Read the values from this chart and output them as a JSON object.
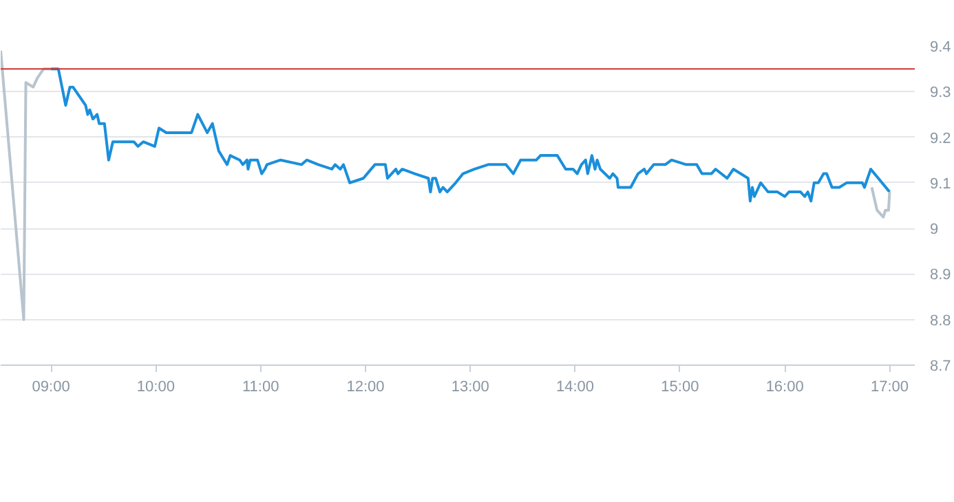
{
  "chart_data": {
    "type": "line",
    "xlim": [
      8.52,
      17.24
    ],
    "ylim": [
      8.7,
      9.4
    ],
    "xticks": [
      {
        "value": 9,
        "label": "09:00"
      },
      {
        "value": 10,
        "label": "10:00"
      },
      {
        "value": 11,
        "label": "11:00"
      },
      {
        "value": 12,
        "label": "12:00"
      },
      {
        "value": 13,
        "label": "13:00"
      },
      {
        "value": 14,
        "label": "14:00"
      },
      {
        "value": 15,
        "label": "15:00"
      },
      {
        "value": 16,
        "label": "16:00"
      },
      {
        "value": 17,
        "label": "17:00"
      }
    ],
    "yticks": [
      8.7,
      8.8,
      8.9,
      9,
      9.1,
      9.2,
      9.3,
      9.4
    ],
    "grid": "y",
    "marker": "none",
    "line_style": "solid",
    "series": [
      {
        "color": "#b8c4ce",
        "x": [
          8.52,
          8.74,
          8.76,
          8.83,
          8.87,
          8.93,
          9.0
        ],
        "values": [
          9.39,
          8.8,
          9.32,
          9.31,
          9.33,
          9.35,
          9.35
        ]
      },
      {
        "color": "#1a8fdb",
        "x": [
          9.0,
          9.07,
          9.14,
          9.18,
          9.21,
          9.33,
          9.35,
          9.37,
          9.4,
          9.44,
          9.46,
          9.51,
          9.55,
          9.59,
          9.65,
          9.74,
          9.79,
          9.83,
          9.88,
          9.99,
          10.03,
          10.1,
          10.34,
          10.4,
          10.49,
          10.54,
          10.6,
          10.68,
          10.71,
          10.8,
          10.83,
          10.87,
          10.88,
          10.9,
          10.97,
          11.01,
          11.04,
          11.06,
          11.19,
          11.39,
          11.44,
          11.55,
          11.68,
          11.71,
          11.76,
          11.79,
          11.85,
          11.98,
          12.09,
          12.19,
          12.21,
          12.29,
          12.31,
          12.35,
          12.47,
          12.6,
          12.62,
          12.64,
          12.67,
          12.71,
          12.74,
          12.78,
          12.86,
          12.93,
          13.04,
          13.17,
          13.34,
          13.41,
          13.48,
          13.63,
          13.67,
          13.83,
          13.91,
          13.98,
          14.02,
          14.06,
          14.1,
          14.12,
          14.16,
          14.19,
          14.21,
          14.24,
          14.33,
          14.36,
          14.4,
          14.41,
          14.53,
          14.6,
          14.66,
          14.68,
          14.75,
          14.86,
          14.92,
          15.06,
          15.12,
          15.16,
          15.21,
          15.3,
          15.34,
          15.45,
          15.51,
          15.65,
          15.67,
          15.69,
          15.71,
          15.77,
          15.84,
          15.93,
          16.0,
          16.04,
          16.15,
          16.19,
          16.22,
          16.25,
          16.28,
          16.32,
          16.37,
          16.4,
          16.45,
          16.52,
          16.59,
          16.63,
          16.74,
          16.76,
          16.82,
          17.0
        ],
        "values": [
          9.35,
          9.35,
          9.27,
          9.31,
          9.31,
          9.27,
          9.25,
          9.26,
          9.24,
          9.25,
          9.23,
          9.23,
          9.15,
          9.19,
          9.19,
          9.19,
          9.19,
          9.18,
          9.19,
          9.18,
          9.22,
          9.21,
          9.21,
          9.25,
          9.21,
          9.23,
          9.17,
          9.14,
          9.16,
          9.15,
          9.14,
          9.15,
          9.13,
          9.15,
          9.15,
          9.12,
          9.13,
          9.14,
          9.15,
          9.14,
          9.15,
          9.14,
          9.13,
          9.14,
          9.13,
          9.14,
          9.1,
          9.11,
          9.14,
          9.14,
          9.11,
          9.13,
          9.12,
          9.13,
          9.12,
          9.11,
          9.08,
          9.11,
          9.11,
          9.08,
          9.09,
          9.08,
          9.1,
          9.12,
          9.13,
          9.14,
          9.14,
          9.12,
          9.15,
          9.15,
          9.16,
          9.16,
          9.13,
          9.13,
          9.12,
          9.14,
          9.15,
          9.12,
          9.16,
          9.13,
          9.15,
          9.13,
          9.11,
          9.12,
          9.11,
          9.09,
          9.09,
          9.12,
          9.13,
          9.12,
          9.14,
          9.14,
          9.15,
          9.14,
          9.14,
          9.14,
          9.12,
          9.12,
          9.13,
          9.11,
          9.13,
          9.11,
          9.06,
          9.09,
          9.07,
          9.1,
          9.08,
          9.08,
          9.07,
          9.08,
          9.08,
          9.07,
          9.08,
          9.06,
          9.1,
          9.1,
          9.12,
          9.12,
          9.09,
          9.09,
          9.1,
          9.1,
          9.1,
          9.09,
          9.13,
          9.08
        ]
      },
      {
        "color": "#b8c4ce",
        "x": [
          16.83,
          16.88,
          16.94,
          16.96,
          16.99,
          17.0
        ],
        "values": [
          9.09,
          9.04,
          9.025,
          9.04,
          9.04,
          9.08
        ]
      }
    ],
    "ref_lines": [
      {
        "axis": "y",
        "value": 9.35,
        "color": "#d0312d",
        "line_style": "solid"
      }
    ]
  }
}
